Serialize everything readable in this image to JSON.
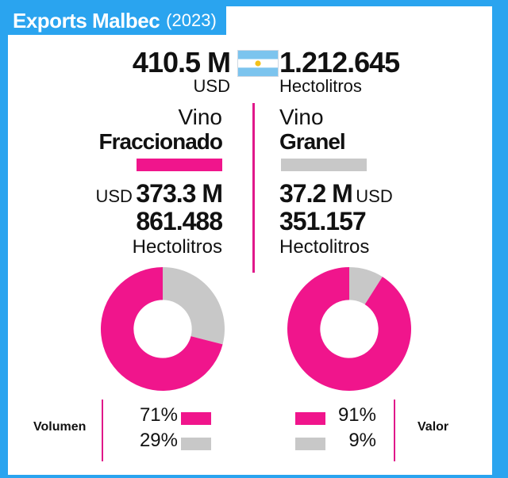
{
  "header": {
    "title": "Exports Malbec",
    "year": "(2023)"
  },
  "totals": {
    "usd_value": "410.5 M",
    "usd_unit": "USD",
    "hl_value": "1.212.645",
    "hl_unit": "Hectolitros"
  },
  "fraccionado": {
    "label_top": "Vino",
    "label_bottom": "Fraccionado",
    "usd_prefix": "USD",
    "usd_value": "373.3 M",
    "hl_value": "861.488",
    "hl_unit": "Hectolitros"
  },
  "granel": {
    "label_top": "Vino",
    "label_bottom": "Granel",
    "usd_value": "37.2 M",
    "usd_suffix": "USD",
    "hl_value": "351.157",
    "hl_unit": "Hectolitros"
  },
  "legend": {
    "volumen_label": "Volumen",
    "valor_label": "Valor",
    "volumen_main": "71%",
    "volumen_other": "29%",
    "valor_main": "91%",
    "valor_other": "9%"
  },
  "colors": {
    "magenta": "#f0158c",
    "gray": "#c8c8c8",
    "blue": "#2aa4ef",
    "flag_blue": "#7cc4ee",
    "sun": "#f3c21b"
  },
  "chart_data": [
    {
      "type": "pie",
      "name": "Volumen",
      "categories": [
        "Fraccionado",
        "Granel"
      ],
      "values": [
        71,
        29
      ],
      "unit": "%"
    },
    {
      "type": "pie",
      "name": "Valor",
      "categories": [
        "Fraccionado",
        "Granel"
      ],
      "values": [
        91,
        9
      ],
      "unit": "%"
    }
  ]
}
